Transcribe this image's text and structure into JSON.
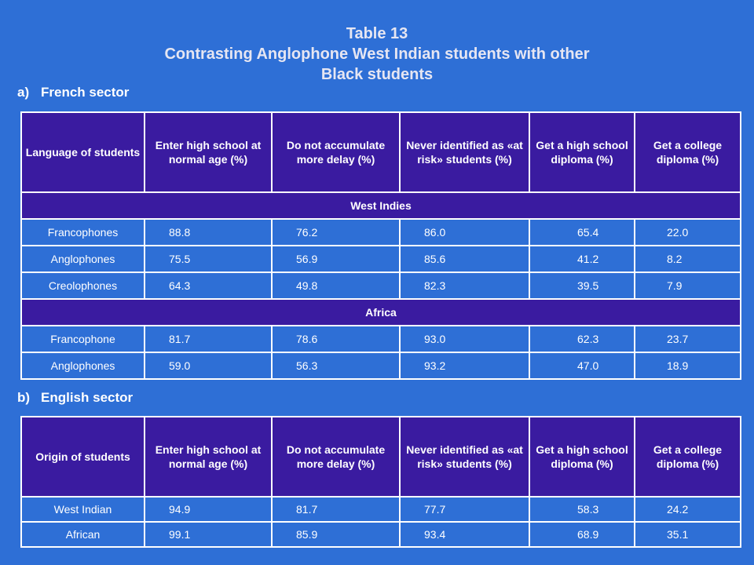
{
  "title": {
    "line1": "Table 13",
    "line2": "Contrasting Anglophone West Indian students with other",
    "line3": "Black students"
  },
  "french": {
    "label": "a)",
    "title": "French sector",
    "headers": [
      "Language of students",
      "Enter high school at normal age  (%)",
      "Do not accumulate more delay (%)",
      "Never identified as «at risk» students (%)",
      "Get a high school diploma (%)",
      "Get a college diploma (%)"
    ],
    "groups": [
      {
        "name": "West Indies",
        "rows": [
          [
            "Francophones",
            "88.8",
            "76.2",
            "86.0",
            "65.4",
            "22.0"
          ],
          [
            "Anglophones",
            "75.5",
            "56.9",
            "85.6",
            "41.2",
            " 8.2"
          ],
          [
            "Creolophones",
            "64.3",
            "49.8",
            "82.3",
            "39.5",
            " 7.9"
          ]
        ]
      },
      {
        "name": "Africa",
        "rows": [
          [
            "Francophone",
            "81.7",
            "78.6",
            "93.0",
            "62.3",
            "23.7"
          ],
          [
            "Anglophones",
            "59.0",
            "56.3",
            "93.2",
            "47.0",
            "18.9"
          ]
        ]
      }
    ]
  },
  "english": {
    "label": "b)",
    "title": "English sector",
    "headers": [
      "Origin of students",
      "Enter high school at normal age  (%)",
      "Do not accumulate more delay (%)",
      "Never identified as «at risk» students (%)",
      "Get a high school diploma (%)",
      "Get a college diploma (%)"
    ],
    "rows": [
      [
        "West Indian",
        "94.9",
        "81.7",
        "77.7",
        "58.3",
        "24.2"
      ],
      [
        "African",
        "99.1",
        "85.9",
        "93.4",
        "68.9",
        "35.1"
      ]
    ]
  },
  "colors": {
    "background": "#2E6FD6",
    "header_fill": "#3A1BA0",
    "border": "#FFFFFF"
  }
}
